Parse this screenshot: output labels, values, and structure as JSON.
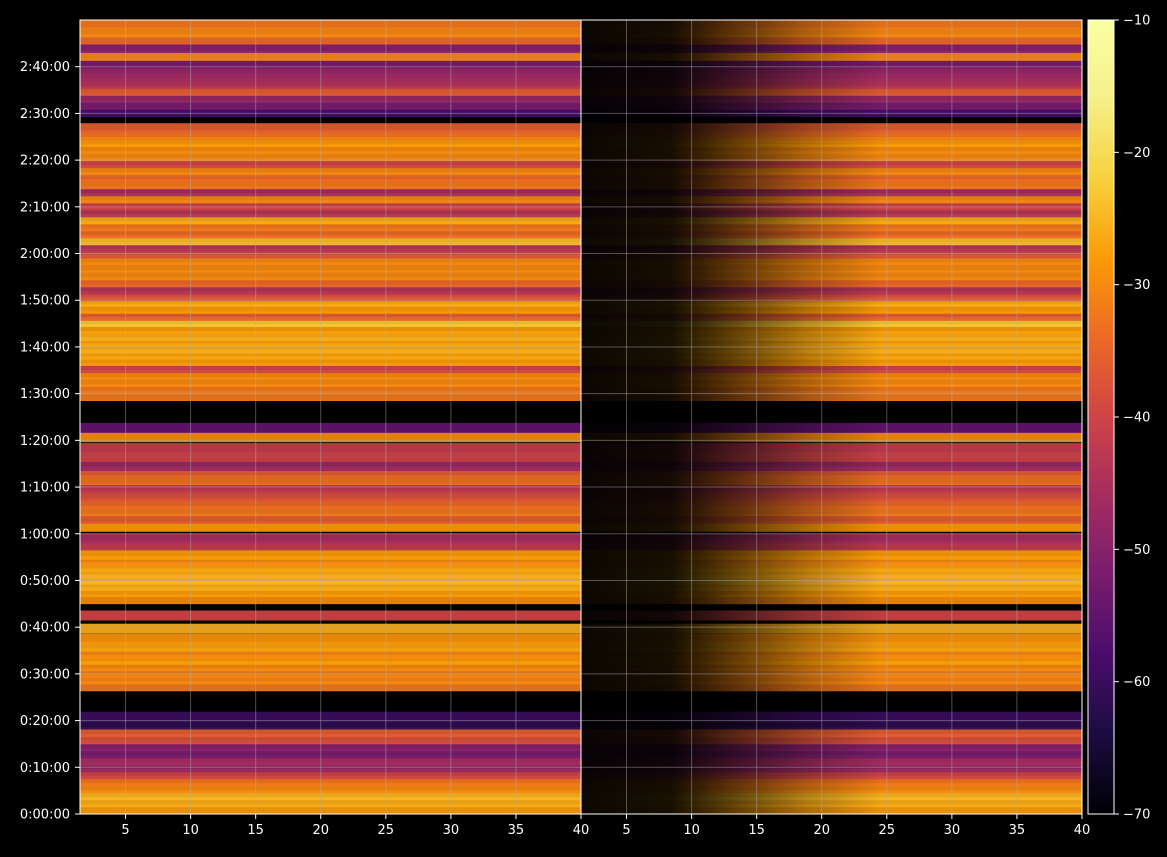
{
  "chart_data": {
    "type": "heatmap",
    "title": "",
    "xlabel": "",
    "ylabel": "",
    "panels": [
      {
        "name": "",
        "xlim": [
          1.5,
          40
        ],
        "ylim_seconds": [
          0,
          10200
        ],
        "xticks": [
          5,
          10,
          15,
          20,
          25,
          30,
          35,
          40
        ],
        "xtick_labels": [
          "5",
          "10",
          "15",
          "20",
          "25",
          "30",
          "35",
          "40"
        ],
        "gradient": "flat"
      },
      {
        "name": "",
        "xlim": [
          1.5,
          40
        ],
        "ylim_seconds": [
          0,
          10200
        ],
        "xticks": [
          5,
          10,
          15,
          20,
          25,
          30,
          35,
          40
        ],
        "xtick_labels": [
          "5",
          "10",
          "15",
          "20",
          "25",
          "30",
          "35",
          "40"
        ],
        "gradient": "ramp"
      }
    ],
    "yticks_seconds": [
      0,
      600,
      1200,
      1800,
      2400,
      3000,
      3600,
      4200,
      4800,
      5400,
      6000,
      6600,
      7200,
      7800,
      8400,
      9000,
      9600
    ],
    "ytick_labels": [
      "0:00:00",
      "0:10:00",
      "0:20:00",
      "0:30:00",
      "0:40:00",
      "0:50:00",
      "1:00:00",
      "1:10:00",
      "1:20:00",
      "1:30:00",
      "1:40:00",
      "1:50:00",
      "2:00:00",
      "2:10:00",
      "2:20:00",
      "2:30:00",
      "2:40:00"
    ],
    "colorbar": {
      "range": [
        -70,
        -10
      ],
      "ticks": [
        -70,
        -60,
        -50,
        -40,
        -30,
        -20,
        -10
      ],
      "tick_labels": [
        "−70",
        "−60",
        "−50",
        "−40",
        "−30",
        "−20",
        "−10"
      ],
      "colormap": "inferno"
    },
    "bands": [
      {
        "t": 60,
        "v": -28
      },
      {
        "t": 150,
        "v": -26
      },
      {
        "t": 240,
        "v": -25
      },
      {
        "t": 330,
        "v": -30
      },
      {
        "t": 420,
        "v": -32
      },
      {
        "t": 510,
        "v": -40
      },
      {
        "t": 600,
        "v": -48
      },
      {
        "t": 690,
        "v": -46
      },
      {
        "t": 780,
        "v": -52
      },
      {
        "t": 870,
        "v": -50
      },
      {
        "t": 960,
        "v": -38
      },
      {
        "t": 1050,
        "v": -36
      },
      {
        "t": 1150,
        "v": -62
      },
      {
        "t": 1250,
        "v": -60
      },
      {
        "t": 1640,
        "v": -32
      },
      {
        "t": 1730,
        "v": -30
      },
      {
        "t": 1810,
        "v": -31
      },
      {
        "t": 1900,
        "v": -30
      },
      {
        "t": 1980,
        "v": -28
      },
      {
        "t": 2060,
        "v": -30
      },
      {
        "t": 2150,
        "v": -27
      },
      {
        "t": 2250,
        "v": -29
      },
      {
        "t": 2380,
        "v": -26
      },
      {
        "t": 2550,
        "v": -40
      },
      {
        "t": 2760,
        "v": -30
      },
      {
        "t": 2850,
        "v": -28
      },
      {
        "t": 2930,
        "v": -26
      },
      {
        "t": 3010,
        "v": -25
      },
      {
        "t": 3090,
        "v": -26
      },
      {
        "t": 3170,
        "v": -27
      },
      {
        "t": 3250,
        "v": -30
      },
      {
        "t": 3330,
        "v": -28
      },
      {
        "t": 3450,
        "v": -42
      },
      {
        "t": 3540,
        "v": -46
      },
      {
        "t": 3690,
        "v": -28
      },
      {
        "t": 3790,
        "v": -36
      },
      {
        "t": 3890,
        "v": -32
      },
      {
        "t": 3990,
        "v": -34
      },
      {
        "t": 4080,
        "v": -38
      },
      {
        "t": 4180,
        "v": -42
      },
      {
        "t": 4290,
        "v": -33
      },
      {
        "t": 4400,
        "v": -36
      },
      {
        "t": 4470,
        "v": -48
      },
      {
        "t": 4590,
        "v": -40
      },
      {
        "t": 4700,
        "v": -42
      },
      {
        "t": 4840,
        "v": -30
      },
      {
        "t": 4960,
        "v": -55
      },
      {
        "t": 5370,
        "v": -32
      },
      {
        "t": 5460,
        "v": -32
      },
      {
        "t": 5550,
        "v": -30
      },
      {
        "t": 5640,
        "v": -30
      },
      {
        "t": 5730,
        "v": -40
      },
      {
        "t": 5820,
        "v": -28
      },
      {
        "t": 5900,
        "v": -27
      },
      {
        "t": 5980,
        "v": -26
      },
      {
        "t": 6060,
        "v": -27
      },
      {
        "t": 6140,
        "v": -26
      },
      {
        "t": 6230,
        "v": -28
      },
      {
        "t": 6320,
        "v": -23
      },
      {
        "t": 6400,
        "v": -36
      },
      {
        "t": 6490,
        "v": -28
      },
      {
        "t": 6580,
        "v": -26
      },
      {
        "t": 6650,
        "v": -38
      },
      {
        "t": 6740,
        "v": -44
      },
      {
        "t": 6830,
        "v": -34
      },
      {
        "t": 6920,
        "v": -30
      },
      {
        "t": 7020,
        "v": -30
      },
      {
        "t": 7120,
        "v": -30
      },
      {
        "t": 7200,
        "v": -38
      },
      {
        "t": 7280,
        "v": -44
      },
      {
        "t": 7370,
        "v": -24
      },
      {
        "t": 7460,
        "v": -34
      },
      {
        "t": 7550,
        "v": -32
      },
      {
        "t": 7640,
        "v": -26
      },
      {
        "t": 7730,
        "v": -44
      },
      {
        "t": 7820,
        "v": -40
      },
      {
        "t": 7910,
        "v": -30
      },
      {
        "t": 8000,
        "v": -46
      },
      {
        "t": 8090,
        "v": -32
      },
      {
        "t": 8180,
        "v": -34
      },
      {
        "t": 8270,
        "v": -30
      },
      {
        "t": 8360,
        "v": -40
      },
      {
        "t": 8450,
        "v": -30
      },
      {
        "t": 8540,
        "v": -30
      },
      {
        "t": 8630,
        "v": -28
      },
      {
        "t": 8720,
        "v": -32
      },
      {
        "t": 8810,
        "v": -36
      },
      {
        "t": 9020,
        "v": -58
      },
      {
        "t": 9110,
        "v": -52
      },
      {
        "t": 9200,
        "v": -48
      },
      {
        "t": 9290,
        "v": -36
      },
      {
        "t": 9380,
        "v": -44
      },
      {
        "t": 9460,
        "v": -46
      },
      {
        "t": 9540,
        "v": -48
      },
      {
        "t": 9640,
        "v": -52
      },
      {
        "t": 9740,
        "v": -30
      },
      {
        "t": 9840,
        "v": -50
      },
      {
        "t": 9950,
        "v": -34
      },
      {
        "t": 10040,
        "v": -30
      },
      {
        "t": 10140,
        "v": -32
      }
    ]
  }
}
